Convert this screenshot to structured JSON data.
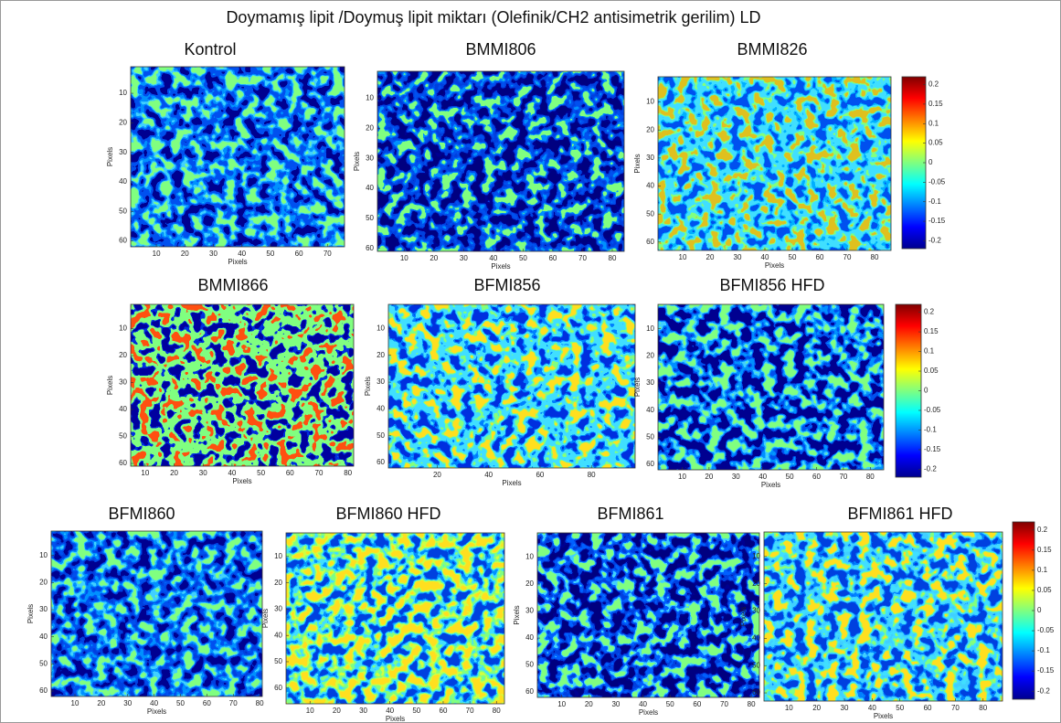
{
  "title": "Doymamış lipit /Doymuş lipit miktarı (Olefinik/CH2 antisimetrik gerilim) LD",
  "chart_data": [
    {
      "type": "heatmap",
      "title": "Kontrol",
      "xlabel": "Pixels",
      "ylabel": "Pixels",
      "xlim": [
        1,
        76
      ],
      "ylim": [
        1,
        62
      ],
      "y_reversed": true,
      "xticks": [
        10,
        20,
        30,
        40,
        50,
        60,
        70
      ],
      "yticks": [
        10,
        20,
        30,
        40,
        50,
        60
      ],
      "colors": [
        "#000090",
        "#0050f0",
        "#0050f0",
        "#0090ff",
        "#40d0ff",
        "#80ff80"
      ]
    },
    {
      "type": "heatmap",
      "title": "BMMI806",
      "xlabel": "Pixels",
      "ylabel": "Pixels",
      "xlim": [
        1,
        84
      ],
      "ylim": [
        1,
        61
      ],
      "y_reversed": true,
      "xticks": [
        10,
        20,
        30,
        40,
        50,
        60,
        70,
        80
      ],
      "yticks": [
        10,
        20,
        30,
        40,
        50,
        60
      ],
      "colors": [
        "#000080",
        "#000090",
        "#0040e0",
        "#0050f0",
        "#0090ff",
        "#80ff80"
      ]
    },
    {
      "type": "heatmap",
      "title": "BMMI826",
      "xlabel": "Pixels",
      "ylabel": "Pixels",
      "xlim": [
        1,
        86
      ],
      "ylim": [
        1,
        63
      ],
      "y_reversed": true,
      "xticks": [
        10,
        20,
        30,
        40,
        50,
        60,
        70,
        80
      ],
      "yticks": [
        10,
        20,
        30,
        40,
        50,
        60
      ],
      "colors": [
        "#0050f0",
        "#00b0ff",
        "#40e0ff",
        "#40e0ff",
        "#80ff80",
        "#e0c020"
      ]
    },
    {
      "type": "heatmap",
      "title": "BMMI866",
      "xlabel": "Pixels",
      "ylabel": "Pixels",
      "xlim": [
        5,
        82
      ],
      "ylim": [
        1,
        61
      ],
      "y_reversed": true,
      "xticks": [
        10,
        20,
        30,
        40,
        50,
        60,
        70,
        80
      ],
      "yticks": [
        10,
        20,
        30,
        40,
        50,
        60
      ],
      "colors": [
        "#0000a0",
        "#0030e0",
        "#80ff80",
        "#80ff80",
        "#80ff80",
        "#ff5010"
      ]
    },
    {
      "type": "heatmap",
      "title": "BFMI856",
      "xlabel": "Pixels",
      "ylabel": "Pixels",
      "xlim": [
        1,
        97
      ],
      "ylim": [
        1,
        62
      ],
      "y_reversed": true,
      "xticks": [
        20,
        40,
        60,
        80
      ],
      "yticks": [
        10,
        20,
        30,
        40,
        50,
        60
      ],
      "colors": [
        "#0030e0",
        "#0080ff",
        "#40e0ff",
        "#40e0ff",
        "#80ff80",
        "#ffe020"
      ]
    },
    {
      "type": "heatmap",
      "title": "BFMI856 HFD",
      "xlabel": "Pixels",
      "ylabel": "Pixels",
      "xlim": [
        1,
        85
      ],
      "ylim": [
        1,
        62
      ],
      "y_reversed": true,
      "xticks": [
        10,
        20,
        30,
        40,
        50,
        60,
        70,
        80
      ],
      "yticks": [
        10,
        20,
        30,
        40,
        50,
        60
      ],
      "colors": [
        "#000090",
        "#000090",
        "#0050f0",
        "#0090ff",
        "#40d0ff",
        "#80ff80"
      ]
    },
    {
      "type": "heatmap",
      "title": "BFMI860",
      "xlabel": "Pixels",
      "ylabel": "Pixels",
      "xlim": [
        1,
        81
      ],
      "ylim": [
        1,
        62
      ],
      "y_reversed": true,
      "xticks": [
        10,
        20,
        30,
        40,
        50,
        60,
        70,
        80
      ],
      "yticks": [
        10,
        20,
        30,
        40,
        50,
        60
      ],
      "colors": [
        "#000090",
        "#0040e0",
        "#0050f0",
        "#0090ff",
        "#40d0ff",
        "#80ff80"
      ]
    },
    {
      "type": "heatmap",
      "title": "BFMI860 HFD",
      "xlabel": "Pixels",
      "ylabel": "Pixels",
      "xlim": [
        1,
        83
      ],
      "ylim": [
        1,
        66
      ],
      "y_reversed": true,
      "xticks": [
        10,
        20,
        30,
        40,
        50,
        60,
        70,
        80
      ],
      "yticks": [
        10,
        20,
        30,
        40,
        50,
        60
      ],
      "colors": [
        "#0040e0",
        "#0090ff",
        "#40e0ff",
        "#80ff80",
        "#d0ff40",
        "#ffe020"
      ]
    },
    {
      "type": "heatmap",
      "title": "BFMI861",
      "xlabel": "Pixels",
      "ylabel": "Pixels",
      "xlim": [
        1,
        83
      ],
      "ylim": [
        1,
        62
      ],
      "y_reversed": true,
      "xticks": [
        10,
        20,
        30,
        40,
        50,
        60,
        70,
        80
      ],
      "yticks": [
        10,
        20,
        30,
        40,
        50,
        60
      ],
      "colors": [
        "#000080",
        "#000090",
        "#0040e0",
        "#0060ff",
        "#40d0ff",
        "#80ff80"
      ]
    },
    {
      "type": "heatmap",
      "title": "BFMI861 HFD",
      "xlabel": "Pixels",
      "ylabel": "Pixels",
      "xlim": [
        1,
        87
      ],
      "ylim": [
        1,
        63
      ],
      "y_reversed": true,
      "xticks": [
        10,
        20,
        30,
        40,
        50,
        60,
        70,
        80
      ],
      "yticks": [
        10,
        20,
        30,
        40,
        50,
        60
      ],
      "colors": [
        "#0040e0",
        "#0080ff",
        "#40d0ff",
        "#40e0ff",
        "#80ff80",
        "#ffe020"
      ]
    }
  ],
  "colorbars": [
    {
      "lim": [
        -0.22,
        0.22
      ],
      "ticks": [
        0.2,
        0.15,
        0.1,
        0.05,
        0,
        -0.05,
        -0.1,
        -0.15,
        -0.2
      ]
    },
    {
      "lim": [
        -0.22,
        0.22
      ],
      "ticks": [
        0.2,
        0.15,
        0.1,
        0.05,
        0,
        -0.05,
        -0.1,
        -0.15,
        -0.2
      ]
    },
    {
      "lim": [
        -0.22,
        0.22
      ],
      "ticks": [
        0.2,
        0.15,
        0.1,
        0.05,
        0,
        -0.05,
        -0.1,
        -0.15,
        -0.2
      ]
    }
  ]
}
